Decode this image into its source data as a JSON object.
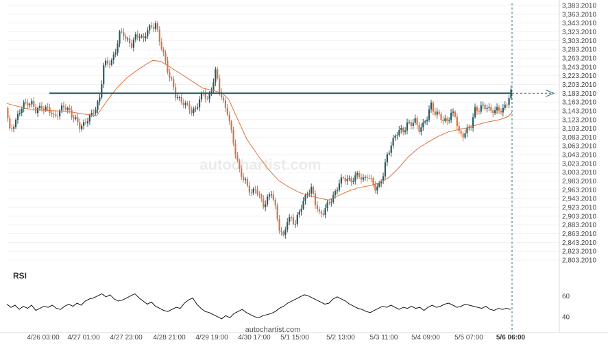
{
  "chart_data": [
    {
      "type": "candlestick",
      "ylim": [
        2803.201,
        3383.201
      ],
      "ytick_labels": [
        "3,383.2010",
        "3,363.2010",
        "3,343.2010",
        "3,323.2010",
        "3,303.2010",
        "3,283.2010",
        "3,263.2010",
        "3,243.2010",
        "3,223.2010",
        "3,203.2010",
        "3,183.2010",
        "3,163.2010",
        "3,143.2010",
        "3,123.2010",
        "3,103.2010",
        "3,083.2010",
        "3,063.2010",
        "3,043.2010",
        "3,023.2010",
        "3,003.2010",
        "2,983.2010",
        "2,963.2010",
        "2,943.2010",
        "2,923.2010",
        "2,903.2010",
        "2,883.2010",
        "2,863.2010",
        "2,843.2010",
        "2,823.2010",
        "2,803.2010"
      ],
      "ytick_values": [
        3383.201,
        3363.201,
        3343.201,
        3323.201,
        3303.201,
        3283.201,
        3263.201,
        3243.201,
        3223.201,
        3203.201,
        3183.201,
        3163.201,
        3143.201,
        3123.201,
        3103.201,
        3083.201,
        3063.201,
        3043.201,
        3023.201,
        3003.201,
        2983.201,
        2963.201,
        2943.201,
        2923.201,
        2903.201,
        2883.201,
        2863.201,
        2843.201,
        2823.201,
        2803.201
      ],
      "xtick_labels": [
        "4/26 03:00",
        "4/27 01:00",
        "4/27 23:00",
        "4/28 21:00",
        "4/29 19:00",
        "4/30 17:00",
        "5/1 15:00",
        "5/2 13:00",
        "5/3 11:00",
        "5/4 09:00",
        "5/5 07:00",
        "5/6 06:00"
      ],
      "series": [
        {
          "kind": "close-path",
          "points": [
            [
              0,
              3150
            ],
            [
              2,
              3095
            ],
            [
              4,
              3115
            ],
            [
              7,
              3140
            ],
            [
              9,
              3155
            ],
            [
              11,
              3165
            ],
            [
              13,
              3160
            ],
            [
              15,
              3140
            ],
            [
              18,
              3155
            ],
            [
              21,
              3145
            ],
            [
              24,
              3130
            ],
            [
              26,
              3140
            ],
            [
              29,
              3150
            ],
            [
              32,
              3145
            ],
            [
              35,
              3120
            ],
            [
              37,
              3105
            ],
            [
              39,
              3115
            ],
            [
              41,
              3125
            ],
            [
              43,
              3130
            ],
            [
              45,
              3150
            ],
            [
              47,
              3175
            ],
            [
              49,
              3245
            ],
            [
              51,
              3250
            ],
            [
              53,
              3260
            ],
            [
              55,
              3280
            ],
            [
              57,
              3315
            ],
            [
              59,
              3320
            ],
            [
              61,
              3305
            ],
            [
              63,
              3290
            ],
            [
              65,
              3310
            ],
            [
              67,
              3320
            ],
            [
              69,
              3305
            ],
            [
              71,
              3325
            ],
            [
              73,
              3335
            ],
            [
              75,
              3345
            ],
            [
              77,
              3300
            ],
            [
              79,
              3270
            ],
            [
              81,
              3240
            ],
            [
              83,
              3210
            ],
            [
              85,
              3175
            ],
            [
              87,
              3170
            ],
            [
              89,
              3165
            ],
            [
              91,
              3150
            ],
            [
              93,
              3140
            ],
            [
              95,
              3150
            ],
            [
              97,
              3170
            ],
            [
              99,
              3180
            ],
            [
              101,
              3170
            ],
            [
              103,
              3195
            ],
            [
              105,
              3230
            ],
            [
              107,
              3190
            ],
            [
              109,
              3165
            ],
            [
              111,
              3140
            ],
            [
              113,
              3090
            ],
            [
              115,
              3050
            ],
            [
              117,
              3010
            ],
            [
              119,
              2985
            ],
            [
              121,
              2970
            ],
            [
              123,
              2960
            ],
            [
              125,
              2965
            ],
            [
              127,
              2945
            ],
            [
              129,
              2930
            ],
            [
              131,
              2945
            ],
            [
              133,
              2955
            ],
            [
              135,
              2920
            ],
            [
              137,
              2880
            ],
            [
              139,
              2855
            ],
            [
              141,
              2890
            ],
            [
              143,
              2900
            ],
            [
              145,
              2890
            ],
            [
              147,
              2910
            ],
            [
              149,
              2935
            ],
            [
              151,
              2960
            ],
            [
              153,
              2965
            ],
            [
              155,
              2930
            ],
            [
              157,
              2910
            ],
            [
              159,
              2915
            ],
            [
              161,
              2925
            ],
            [
              163,
              2940
            ],
            [
              165,
              2960
            ],
            [
              167,
              2980
            ],
            [
              169,
              2985
            ],
            [
              171,
              2990
            ],
            [
              173,
              2985
            ],
            [
              175,
              2990
            ],
            [
              177,
              2995
            ],
            [
              179,
              2990
            ],
            [
              181,
              2995
            ],
            [
              183,
              2980
            ],
            [
              185,
              2970
            ],
            [
              187,
              2975
            ],
            [
              189,
              2995
            ],
            [
              191,
              3040
            ],
            [
              193,
              3070
            ],
            [
              195,
              3085
            ],
            [
              197,
              3095
            ],
            [
              199,
              3100
            ],
            [
              201,
              3115
            ],
            [
              203,
              3110
            ],
            [
              205,
              3120
            ],
            [
              207,
              3105
            ],
            [
              209,
              3110
            ],
            [
              211,
              3125
            ],
            [
              213,
              3160
            ],
            [
              215,
              3140
            ],
            [
              217,
              3130
            ],
            [
              219,
              3120
            ],
            [
              221,
              3125
            ],
            [
              223,
              3135
            ],
            [
              225,
              3130
            ],
            [
              227,
              3095
            ],
            [
              229,
              3090
            ],
            [
              231,
              3095
            ],
            [
              233,
              3110
            ],
            [
              235,
              3150
            ],
            [
              237,
              3145
            ],
            [
              239,
              3150
            ],
            [
              241,
              3155
            ],
            [
              243,
              3145
            ],
            [
              245,
              3140
            ],
            [
              247,
              3145
            ],
            [
              249,
              3150
            ],
            [
              251,
              3160
            ],
            [
              253,
              3183.2
            ]
          ]
        },
        {
          "kind": "moving-average",
          "points": [
            [
              0,
              3160
            ],
            [
              10,
              3148
            ],
            [
              20,
              3144
            ],
            [
              30,
              3142
            ],
            [
              40,
              3135
            ],
            [
              45,
              3132
            ],
            [
              50,
              3165
            ],
            [
              55,
              3195
            ],
            [
              60,
              3218
            ],
            [
              65,
              3235
            ],
            [
              70,
              3250
            ],
            [
              73,
              3258
            ],
            [
              77,
              3256
            ],
            [
              82,
              3242
            ],
            [
              88,
              3225
            ],
            [
              93,
              3210
            ],
            [
              98,
              3195
            ],
            [
              103,
              3190
            ],
            [
              108,
              3183
            ],
            [
              111,
              3170
            ],
            [
              115,
              3130
            ],
            [
              120,
              3080
            ],
            [
              126,
              3040
            ],
            [
              131,
              3010
            ],
            [
              136,
              2985
            ],
            [
              141,
              2970
            ],
            [
              146,
              2958
            ],
            [
              151,
              2950
            ],
            [
              156,
              2945
            ],
            [
              161,
              2940
            ],
            [
              166,
              2950
            ],
            [
              171,
              2960
            ],
            [
              176,
              2968
            ],
            [
              181,
              2972
            ],
            [
              186,
              2978
            ],
            [
              191,
              2990
            ],
            [
              196,
              3012
            ],
            [
              201,
              3038
            ],
            [
              206,
              3058
            ],
            [
              211,
              3072
            ],
            [
              216,
              3085
            ],
            [
              221,
              3095
            ],
            [
              226,
              3100
            ],
            [
              231,
              3105
            ],
            [
              236,
              3112
            ],
            [
              241,
              3118
            ],
            [
              246,
              3122
            ],
            [
              251,
              3130
            ],
            [
              253,
              3140
            ]
          ]
        }
      ],
      "resistance_level": 3183.2,
      "projection": true,
      "watermark": "autochartist.com"
    },
    {
      "type": "line",
      "title": "RSI",
      "ytick_labels": [
        "60",
        "40"
      ],
      "ytick_values": [
        60,
        40
      ],
      "ylim": [
        32,
        72
      ],
      "values": [
        52,
        49,
        51,
        47,
        50,
        48,
        51,
        46,
        48,
        50,
        49,
        51,
        48,
        47,
        50,
        52,
        50,
        53,
        51,
        55,
        57,
        58,
        60,
        62,
        59,
        61,
        57,
        55,
        56,
        58,
        60,
        62,
        58,
        55,
        52,
        54,
        50,
        48,
        46,
        45,
        47,
        49,
        48,
        53,
        56,
        58,
        52,
        48,
        45,
        44,
        42,
        40,
        38,
        41,
        39,
        43,
        45,
        47,
        44,
        42,
        40,
        39,
        41,
        42,
        43,
        45,
        48,
        50,
        53,
        55,
        57,
        59,
        61,
        60,
        58,
        56,
        54,
        52,
        53,
        57,
        59,
        57,
        55,
        52,
        50,
        48,
        47,
        45,
        44,
        46,
        48,
        50,
        49,
        51,
        49,
        47,
        49,
        48,
        50,
        48,
        49,
        46,
        49,
        51,
        49,
        50,
        52,
        53,
        51,
        49,
        50,
        52,
        51,
        50,
        49,
        48,
        50,
        47,
        46,
        48,
        47,
        48,
        47
      ]
    }
  ]
}
